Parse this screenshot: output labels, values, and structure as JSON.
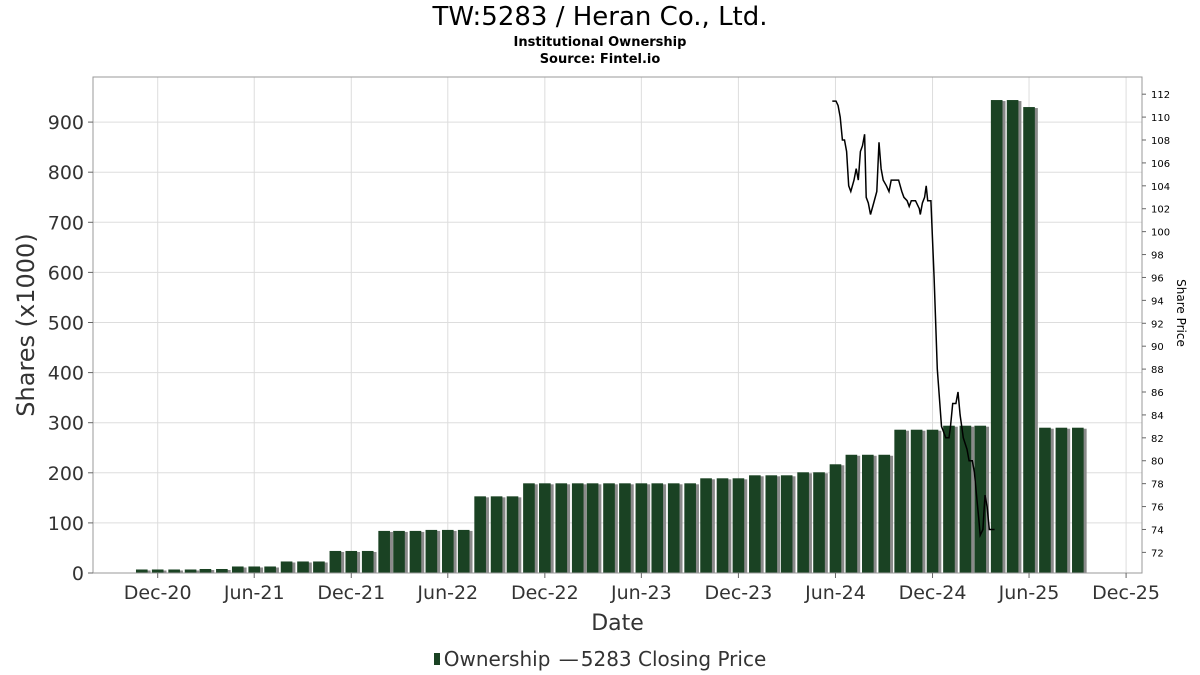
{
  "header": {
    "title": "TW:5283 / Heran Co., Ltd.",
    "subtitle": "Institutional Ownership",
    "source": "Source: Fintel.io"
  },
  "legend": {
    "ownership": "Ownership",
    "price_symbol": "—",
    "price": "5283 Closing Price"
  },
  "colors": {
    "bar": "#1a4223",
    "bar_shadow": "#8a8a8a",
    "line": "#000000",
    "grid": "#dddddd"
  },
  "chart_data": {
    "type": "bar",
    "xlabel": "Date",
    "ylabel": "Shares (x1000)",
    "y2label": "Share Price",
    "ylim": [
      0,
      990
    ],
    "y2lim": [
      70.2,
      113.5
    ],
    "yticks": [
      0,
      100,
      200,
      300,
      400,
      500,
      600,
      700,
      800,
      900
    ],
    "y2ticks": [
      72,
      74,
      76,
      78,
      80,
      82,
      84,
      86,
      88,
      90,
      92,
      94,
      96,
      98,
      100,
      102,
      104,
      106,
      108,
      110,
      112
    ],
    "xlim": [
      "2020-08-01",
      "2025-12-31"
    ],
    "xticks": [
      {
        "label": "Dec-20",
        "date": "2020-12-01"
      },
      {
        "label": "Jun-21",
        "date": "2021-06-01"
      },
      {
        "label": "Dec-21",
        "date": "2021-12-01"
      },
      {
        "label": "Jun-22",
        "date": "2022-06-01"
      },
      {
        "label": "Dec-22",
        "date": "2022-12-01"
      },
      {
        "label": "Jun-23",
        "date": "2023-06-01"
      },
      {
        "label": "Dec-23",
        "date": "2023-12-01"
      },
      {
        "label": "Jun-24",
        "date": "2024-06-01"
      },
      {
        "label": "Dec-24",
        "date": "2024-12-01"
      },
      {
        "label": "Jun-25",
        "date": "2025-06-01"
      },
      {
        "label": "Dec-25",
        "date": "2025-12-01"
      }
    ],
    "grid": true,
    "legend_position": "bottom",
    "series": [
      {
        "name": "Ownership",
        "type": "bar",
        "points": [
          [
            "2020-11-01",
            7
          ],
          [
            "2020-12-01",
            7
          ],
          [
            "2021-01-01",
            7
          ],
          [
            "2021-02-01",
            7
          ],
          [
            "2021-03-01",
            8
          ],
          [
            "2021-04-01",
            8
          ],
          [
            "2021-05-01",
            13
          ],
          [
            "2021-06-01",
            13
          ],
          [
            "2021-07-01",
            13
          ],
          [
            "2021-08-01",
            23
          ],
          [
            "2021-09-01",
            23
          ],
          [
            "2021-10-01",
            23
          ],
          [
            "2021-11-01",
            44
          ],
          [
            "2021-12-01",
            44
          ],
          [
            "2022-01-01",
            44
          ],
          [
            "2022-02-01",
            84
          ],
          [
            "2022-03-01",
            84
          ],
          [
            "2022-04-01",
            84
          ],
          [
            "2022-05-01",
            86
          ],
          [
            "2022-06-01",
            86
          ],
          [
            "2022-07-01",
            86
          ],
          [
            "2022-08-01",
            153
          ],
          [
            "2022-09-01",
            153
          ],
          [
            "2022-10-01",
            153
          ],
          [
            "2022-11-01",
            179
          ],
          [
            "2022-12-01",
            179
          ],
          [
            "2023-01-01",
            179
          ],
          [
            "2023-02-01",
            179
          ],
          [
            "2023-03-01",
            179
          ],
          [
            "2023-04-01",
            179
          ],
          [
            "2023-05-01",
            179
          ],
          [
            "2023-06-01",
            179
          ],
          [
            "2023-07-01",
            179
          ],
          [
            "2023-08-01",
            179
          ],
          [
            "2023-09-01",
            179
          ],
          [
            "2023-10-01",
            189
          ],
          [
            "2023-11-01",
            189
          ],
          [
            "2023-12-01",
            189
          ],
          [
            "2024-01-01",
            195
          ],
          [
            "2024-02-01",
            195
          ],
          [
            "2024-03-01",
            195
          ],
          [
            "2024-04-01",
            201
          ],
          [
            "2024-05-01",
            201
          ],
          [
            "2024-06-01",
            217
          ],
          [
            "2024-07-01",
            236
          ],
          [
            "2024-08-01",
            236
          ],
          [
            "2024-09-01",
            236
          ],
          [
            "2024-10-01",
            286
          ],
          [
            "2024-11-01",
            286
          ],
          [
            "2024-12-01",
            286
          ],
          [
            "2025-01-01",
            294
          ],
          [
            "2025-02-01",
            294
          ],
          [
            "2025-03-01",
            294
          ],
          [
            "2025-04-01",
            944
          ],
          [
            "2025-05-01",
            944
          ],
          [
            "2025-06-01",
            930
          ],
          [
            "2025-07-01",
            290
          ],
          [
            "2025-08-01",
            290
          ],
          [
            "2025-09-01",
            290
          ]
        ]
      },
      {
        "name": "5283 Closing Price",
        "type": "line",
        "axis": "right",
        "points": [
          [
            "2024-05-26",
            111.4
          ],
          [
            "2024-06-02",
            111.4
          ],
          [
            "2024-06-06",
            111
          ],
          [
            "2024-06-10",
            110
          ],
          [
            "2024-06-14",
            108
          ],
          [
            "2024-06-18",
            108
          ],
          [
            "2024-06-22",
            107
          ],
          [
            "2024-06-26",
            104
          ],
          [
            "2024-06-30",
            103.5
          ],
          [
            "2024-07-06",
            104.5
          ],
          [
            "2024-07-10",
            105.5
          ],
          [
            "2024-07-14",
            104.5
          ],
          [
            "2024-07-18",
            107
          ],
          [
            "2024-07-22",
            107.5
          ],
          [
            "2024-07-26",
            108.5
          ],
          [
            "2024-07-29",
            103
          ],
          [
            "2024-08-02",
            102.5
          ],
          [
            "2024-08-06",
            101.5
          ],
          [
            "2024-08-12",
            102.5
          ],
          [
            "2024-08-18",
            103.5
          ],
          [
            "2024-08-22",
            107.8
          ],
          [
            "2024-08-26",
            105.5
          ],
          [
            "2024-08-30",
            104.5
          ],
          [
            "2024-09-05",
            104
          ],
          [
            "2024-09-10",
            103.5
          ],
          [
            "2024-09-14",
            104.5
          ],
          [
            "2024-09-20",
            104.5
          ],
          [
            "2024-09-28",
            104.5
          ],
          [
            "2024-10-04",
            103.5
          ],
          [
            "2024-10-08",
            103
          ],
          [
            "2024-10-14",
            102.7
          ],
          [
            "2024-10-18",
            102.2
          ],
          [
            "2024-10-22",
            102.7
          ],
          [
            "2024-10-30",
            102.7
          ],
          [
            "2024-11-06",
            102
          ],
          [
            "2024-11-08",
            101.5
          ],
          [
            "2024-11-12",
            102.5
          ],
          [
            "2024-11-16",
            103
          ],
          [
            "2024-11-19",
            104
          ],
          [
            "2024-11-22",
            102.7
          ],
          [
            "2024-11-28",
            102.7
          ],
          [
            "2024-12-04",
            96
          ],
          [
            "2024-12-10",
            88
          ],
          [
            "2024-12-18",
            83
          ],
          [
            "2024-12-26",
            82
          ],
          [
            "2025-01-01",
            82
          ],
          [
            "2025-01-04",
            83
          ],
          [
            "2025-01-08",
            85
          ],
          [
            "2025-01-14",
            85
          ],
          [
            "2025-01-18",
            86
          ],
          [
            "2025-01-22",
            84
          ],
          [
            "2025-01-28",
            82
          ],
          [
            "2025-02-04",
            81
          ],
          [
            "2025-02-08",
            80
          ],
          [
            "2025-02-14",
            80
          ],
          [
            "2025-02-18",
            79
          ],
          [
            "2025-02-22",
            77
          ],
          [
            "2025-02-26",
            75
          ],
          [
            "2025-03-01",
            73.5
          ],
          [
            "2025-03-06",
            74
          ],
          [
            "2025-03-10",
            77
          ],
          [
            "2025-03-14",
            76
          ],
          [
            "2025-03-18",
            74
          ],
          [
            "2025-03-24",
            74
          ],
          [
            "2025-03-28",
            74
          ]
        ]
      }
    ]
  }
}
